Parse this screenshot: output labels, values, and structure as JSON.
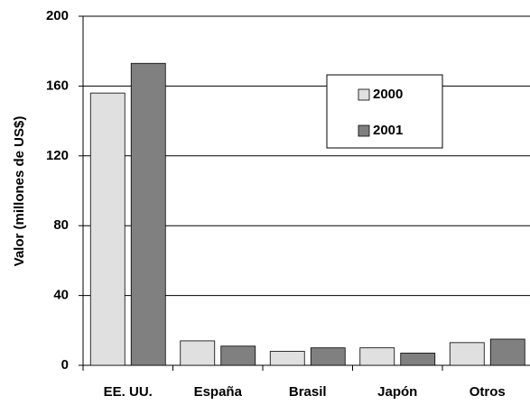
{
  "chart_data": {
    "type": "bar",
    "y_label": "Valor (millones de US$)",
    "categories": [
      "EE. UU.",
      "España",
      "Brasil",
      "Japón",
      "Otros"
    ],
    "series": [
      {
        "name": "2000",
        "color": "#e0e0e0",
        "values": [
          156,
          14,
          8,
          10,
          13
        ]
      },
      {
        "name": "2001",
        "color": "#808080",
        "values": [
          173,
          11,
          10,
          7,
          15
        ]
      }
    ],
    "ylim": [
      0,
      200
    ],
    "yticks": [
      0,
      40,
      80,
      120,
      160,
      200
    ],
    "grid": true,
    "legend": "upper right"
  }
}
